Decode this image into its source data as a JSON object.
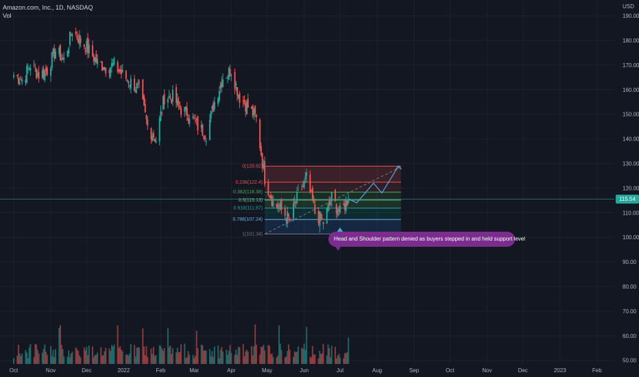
{
  "header": {
    "symbol": "Amazon.com, Inc., 1D, NASDAQ",
    "volume_label": "Vol"
  },
  "axis": {
    "currency": "USD",
    "current_price": "115.54"
  },
  "annotation": {
    "text": "Head and Shoulder pattern denied as buyers stepped in and held support level"
  },
  "colors": {
    "background": "#131722",
    "up": "#26a69a",
    "down": "#ef5350",
    "grid": "#1e222d",
    "projection": "#4fa3d9",
    "note_bg": "#7b2d8e"
  },
  "chart_data": {
    "type": "candlestick",
    "title": "Amazon.com, Inc., 1D, NASDAQ",
    "y_ticks": [
      50,
      60,
      70,
      80,
      90,
      100,
      110,
      120,
      130,
      140,
      150,
      160,
      170,
      180,
      190
    ],
    "ylim": [
      48.5,
      194
    ],
    "x_ticks": [
      "Oct",
      "Nov",
      "Dec",
      "2022",
      "Feb",
      "Mar",
      "Apr",
      "May",
      "Jun",
      "Jul",
      "Aug",
      "Sep",
      "Oct",
      "Nov",
      "Dec",
      "2023",
      "Feb"
    ],
    "price_path": [
      [
        "2021-10-01",
        166
      ],
      [
        "2021-10-08",
        164
      ],
      [
        "2021-10-15",
        170
      ],
      [
        "2021-10-22",
        166
      ],
      [
        "2021-10-29",
        168
      ],
      [
        "2021-11-05",
        176
      ],
      [
        "2021-11-12",
        172
      ],
      [
        "2021-11-19",
        184
      ],
      [
        "2021-11-26",
        180
      ],
      [
        "2021-12-03",
        176
      ],
      [
        "2021-12-10",
        171
      ],
      [
        "2021-12-17",
        169
      ],
      [
        "2021-12-24",
        170
      ],
      [
        "2021-12-31",
        166
      ],
      [
        "2022-01-07",
        163
      ],
      [
        "2022-01-14",
        160
      ],
      [
        "2022-01-21",
        145
      ],
      [
        "2022-01-28",
        140
      ],
      [
        "2022-02-04",
        157
      ],
      [
        "2022-02-11",
        157
      ],
      [
        "2022-02-18",
        152
      ],
      [
        "2022-02-25",
        150
      ],
      [
        "2022-03-04",
        145
      ],
      [
        "2022-03-11",
        142
      ],
      [
        "2022-03-18",
        155
      ],
      [
        "2022-03-25",
        165
      ],
      [
        "2022-04-01",
        168
      ],
      [
        "2022-04-08",
        157
      ],
      [
        "2022-04-15",
        153
      ],
      [
        "2022-04-22",
        148
      ],
      [
        "2022-04-29",
        124
      ],
      [
        "2022-05-06",
        114
      ],
      [
        "2022-05-13",
        111
      ],
      [
        "2022-05-20",
        107
      ],
      [
        "2022-05-27",
        117
      ],
      [
        "2022-06-03",
        124
      ],
      [
        "2022-06-10",
        110
      ],
      [
        "2022-06-17",
        106
      ],
      [
        "2022-06-24",
        116
      ],
      [
        "2022-07-01",
        110
      ],
      [
        "2022-07-08",
        115.5
      ]
    ],
    "current_price": 115.54,
    "fibonacci": [
      {
        "ratio": "0",
        "price": 128.92,
        "label": "0(128.92)"
      },
      {
        "ratio": "0.236",
        "price": 122.4,
        "label": "0.236(122.4)"
      },
      {
        "ratio": "0.382",
        "price": 118.38,
        "label": "0.382(118.38)"
      },
      {
        "ratio": "0.5",
        "price": 115.13,
        "label": "0.5(115.13)"
      },
      {
        "ratio": "0.618",
        "price": 111.87,
        "label": "0.618(111.87)"
      },
      {
        "ratio": "0.786",
        "price": 107.24,
        "label": "0.786(107.24)"
      },
      {
        "ratio": "1",
        "price": 101.34,
        "label": "1(101.34)"
      }
    ],
    "projection_path": [
      [
        "2022-07-15",
        114
      ],
      [
        "2022-07-29",
        122
      ],
      [
        "2022-08-05",
        118
      ],
      [
        "2022-08-19",
        129
      ]
    ],
    "grid": false,
    "legend": "none"
  }
}
